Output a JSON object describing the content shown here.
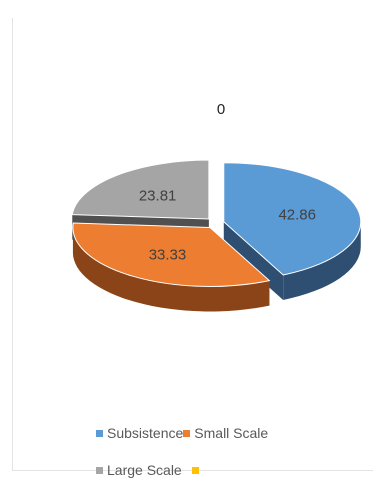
{
  "chart_data": {
    "type": "pie",
    "categories": [
      "Subsistence",
      "Small Scale",
      "Large Scale",
      ""
    ],
    "values": [
      42.86,
      33.33,
      23.81,
      0
    ],
    "data_labels": [
      "42.86",
      "33.33",
      "23.81",
      "0"
    ],
    "colors": [
      "#5b9bd5",
      "#ed7d31",
      "#a5a5a5",
      "#ffc000"
    ],
    "dark_colors": [
      "#2e4f72",
      "#8a4417",
      "#505050",
      "#9a7400"
    ],
    "label_colors": [
      "#404040",
      "#404040",
      "#404040",
      "#222222"
    ],
    "title": "",
    "legend": "bottom",
    "three_d": true,
    "exploded": true
  }
}
